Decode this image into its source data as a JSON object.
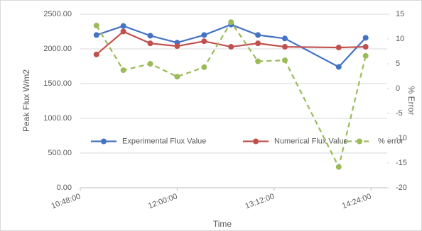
{
  "chart_data": {
    "type": "line",
    "x_label": "Time",
    "y_label": "Peak Flux W/m2",
    "y2_label": "% Error",
    "x": [
      "11:00:00",
      "11:20:00",
      "11:40:00",
      "12:00:00",
      "12:20:00",
      "12:40:00",
      "13:00:00",
      "13:20:00",
      "14:00:00",
      "14:20:00"
    ],
    "xlim": [
      "10:48:00",
      "14:36:00"
    ],
    "xticks": [
      "10:48:00",
      "12:00:00",
      "13:12:00",
      "14:24:00"
    ],
    "ylim": [
      0,
      2500
    ],
    "yticks": [
      {
        "value": 0,
        "label": "0.00"
      },
      {
        "value": 500,
        "label": "500.00"
      },
      {
        "value": 1000,
        "label": "1000.00"
      },
      {
        "value": 1500,
        "label": "1500.00"
      },
      {
        "value": 2000,
        "label": "2000.00"
      },
      {
        "value": 2500,
        "label": "2500.00"
      }
    ],
    "y2lim": [
      -20,
      15
    ],
    "y2ticks": [
      -20,
      -15,
      -10,
      -5,
      0,
      5,
      10,
      15
    ],
    "grid": true,
    "legend": "center",
    "series": [
      {
        "name": "Experimental Flux Value",
        "color": "#4472c4",
        "values": [
          2200,
          2330,
          2190,
          2090,
          2200,
          2350,
          2200,
          2150,
          1740,
          2160
        ]
      },
      {
        "name": "Numerical Flux Value",
        "color": "#c0504d",
        "values": [
          1920,
          2250,
          2080,
          2040,
          2110,
          2030,
          2080,
          2030,
          2020,
          2030
        ]
      },
      {
        "name": "% error",
        "color": "#9bbb59",
        "dashed": true,
        "axis": "y2",
        "values": [
          12.7,
          3.7,
          5.0,
          2.4,
          4.3,
          13.4,
          5.5,
          5.7,
          -15.8,
          6.6
        ]
      }
    ]
  }
}
